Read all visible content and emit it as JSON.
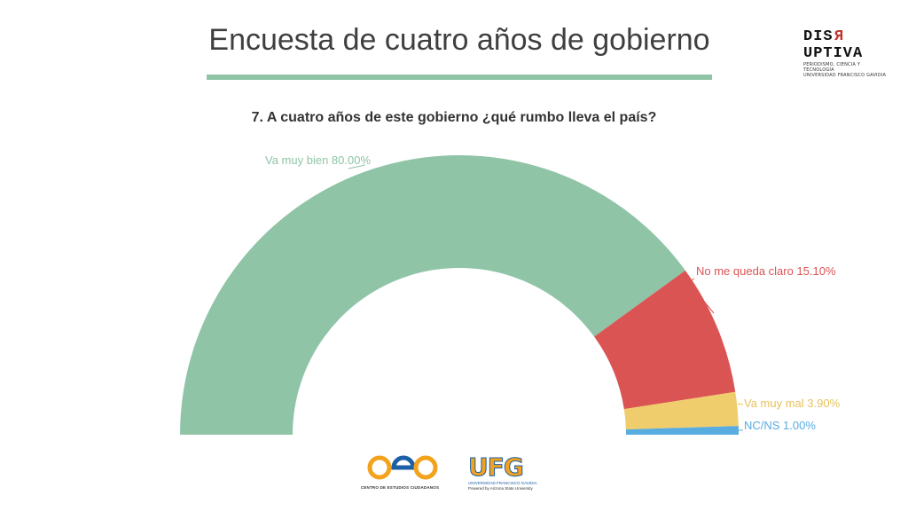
{
  "header": {
    "title": "Encuesta de cuatro años de gobierno"
  },
  "brand": {
    "name_part1": "DIS",
    "name_r": "R",
    "name_part2": "UPTIVA",
    "subtitle_line1": "PERIODISMO, CIENCIA Y TECNOLOGÍA",
    "subtitle_line2": "UNIVERSIDAD FRANCISCO GAVIDIA",
    "accent_color": "#c0342f"
  },
  "question": "7. A cuatro años de este gobierno ¿qué rumbo lleva el país?",
  "chart_data": {
    "type": "pie",
    "subtype": "half-donut",
    "title": "7. A cuatro años de este gobierno ¿qué rumbo lleva el país?",
    "series": [
      {
        "label": "Va muy bien 80.00%",
        "value": 80.0,
        "color": "#8fc4a7"
      },
      {
        "label": "No me queda claro 15.10%",
        "value": 15.1,
        "color": "#db5454"
      },
      {
        "label": "Va muy mal 3.90%",
        "value": 3.9,
        "color": "#f0cd6c"
      },
      {
        "label": "NC/NS 1.00%",
        "value": 1.0,
        "color": "#58ace0"
      }
    ],
    "label_colors": [
      "#8fc4a7",
      "#db5454",
      "#e8c25a",
      "#58ace0"
    ]
  },
  "footer": {
    "cec_caption": "CENTRO DE ESTUDIOS CIUDADANOS",
    "ufg_name": "UFG",
    "ufg_sub": "UNIVERSIDAD FRANCISCO GAVIDIA",
    "ufg_powered": "Powered by Arizona State University"
  }
}
